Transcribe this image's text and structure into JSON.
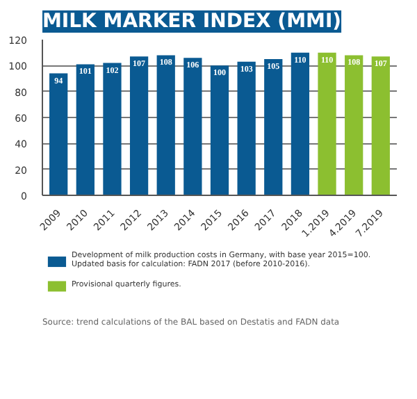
{
  "chart_data": {
    "type": "bar",
    "title": "MILK MARKER INDEX (MMI)",
    "categories": [
      "2009",
      "2010",
      "2011",
      "2012",
      "2013",
      "2014",
      "2015",
      "2016",
      "2017",
      "2018",
      "1.2019",
      "4.2019",
      "7.2019"
    ],
    "series": [
      {
        "name": "Development of milk production costs in Germany, with base year 2015=100.\nUpdated basis for calculation: FADN 2017 (before 2010-2016).",
        "color": "#0a5a92",
        "values": [
          94,
          101,
          102,
          107,
          108,
          106,
          100,
          103,
          105,
          110,
          null,
          null,
          null
        ]
      },
      {
        "name": "Provisional quarterly figures.",
        "color": "#8cbf30",
        "values": [
          null,
          null,
          null,
          null,
          null,
          null,
          null,
          null,
          null,
          null,
          110,
          108,
          107
        ]
      }
    ],
    "ylim": [
      0,
      120
    ],
    "yticks": [
      0,
      20,
      40,
      60,
      80,
      100,
      120
    ],
    "grid": "y",
    "data_labels": true,
    "legend": "bottom",
    "annotations": [
      "Source: trend calculations of the BAL based on Destatis and FADN data"
    ]
  }
}
